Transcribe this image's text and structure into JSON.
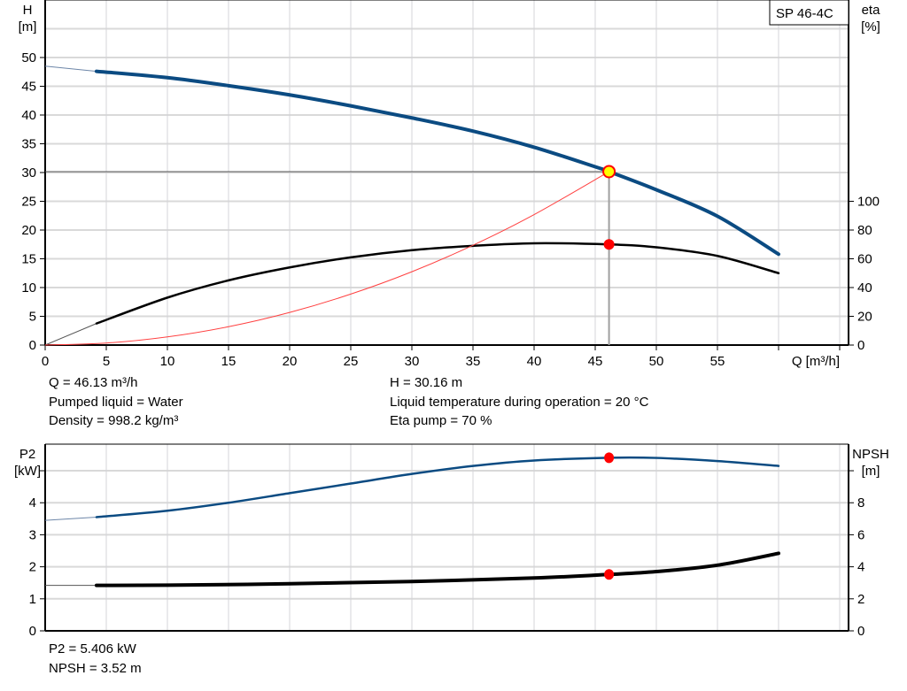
{
  "pump_label": "SP 46-4C",
  "chart_data": [
    {
      "type": "line",
      "title": "",
      "xlabel": "Q [m³/h]",
      "ylabel_left": [
        "H",
        "[m]"
      ],
      "ylabel_right": [
        "eta",
        "[%]"
      ],
      "xlim": [
        0,
        65
      ],
      "ylim_left": [
        0,
        60
      ],
      "ylim_right": [
        0,
        240
      ],
      "xticks": [
        0,
        5,
        10,
        15,
        20,
        25,
        30,
        35,
        40,
        45,
        50,
        55
      ],
      "yticks_left": [
        0,
        5,
        10,
        15,
        20,
        25,
        30,
        35,
        40,
        45,
        50
      ],
      "yticks_right": [
        0,
        20,
        40,
        60,
        80,
        100
      ],
      "grid": true,
      "series": [
        {
          "key": "H",
          "axis": "left",
          "color": "#0b4b82",
          "x": [
            0,
            4.2,
            10,
            15,
            20,
            25,
            30,
            35,
            40,
            45,
            46.13,
            50,
            55,
            60
          ],
          "y": [
            48.5,
            47.6,
            46.5,
            45.1,
            43.5,
            41.6,
            39.5,
            37.2,
            34.4,
            31.0,
            30.16,
            27.0,
            22.4,
            15.8
          ]
        },
        {
          "key": "eta",
          "axis": "right",
          "color": "#000000",
          "x": [
            0,
            4.2,
            10,
            15,
            20,
            25,
            30,
            35,
            40,
            46.13,
            50,
            55,
            60
          ],
          "y": [
            0,
            15,
            33,
            45,
            54,
            61,
            66,
            69,
            70.8,
            70,
            68,
            62,
            50
          ]
        },
        {
          "key": "system",
          "axis": "left",
          "color": "#ff4040",
          "x": [
            0,
            5,
            10,
            15,
            20,
            25,
            30,
            35,
            40,
            46.13
          ],
          "y": [
            0,
            0.35,
            1.42,
            3.19,
            5.67,
            8.86,
            12.75,
            17.36,
            22.68,
            30.16
          ]
        }
      ],
      "operating_point": {
        "Q": 46.13,
        "H": 30.16,
        "eta": 70
      }
    },
    {
      "type": "line",
      "title": "",
      "xlabel": "",
      "ylabel_left": [
        "P2",
        "[kW]"
      ],
      "ylabel_right": [
        "NPSH",
        "[m]"
      ],
      "xlim": [
        0,
        65
      ],
      "ylim_left": [
        0,
        5.3
      ],
      "ylim_right": [
        0,
        10.6
      ],
      "xticks": [
        0,
        5,
        10,
        15,
        20,
        25,
        30,
        35,
        40,
        45,
        50,
        55
      ],
      "yticks_left": [
        0,
        1,
        2,
        3,
        4
      ],
      "yticks_right": [
        0,
        2,
        4,
        6,
        8
      ],
      "grid": true,
      "series": [
        {
          "key": "P2",
          "axis": "left",
          "color": "#0b4b82",
          "x": [
            0,
            4.2,
            10,
            15,
            20,
            25,
            30,
            35,
            40,
            46.13,
            50,
            55,
            60
          ],
          "y": [
            3.45,
            3.55,
            3.75,
            4.0,
            4.3,
            4.6,
            4.9,
            5.15,
            5.32,
            5.406,
            5.4,
            5.3,
            5.15
          ]
        },
        {
          "key": "NPSH",
          "axis": "right",
          "color": "#000000",
          "x": [
            0,
            4.2,
            10,
            20,
            30,
            40,
            46.13,
            50,
            55,
            60
          ],
          "y": [
            2.84,
            2.84,
            2.85,
            2.94,
            3.08,
            3.3,
            3.52,
            3.7,
            4.1,
            4.84
          ]
        }
      ],
      "operating_point": {
        "Q": 46.13,
        "P2": 5.406,
        "NPSH": 3.52
      }
    }
  ],
  "info_top": {
    "q": "Q = 46.13 m³/h",
    "liquid": "Pumped liquid = Water",
    "density": "Density = 998.2 kg/m³",
    "h": "H = 30.16 m",
    "temperature": "Liquid temperature during operation = 20 °C",
    "eta": "Eta pump = 70 %"
  },
  "info_bottom": {
    "p2": "P2 = 5.406 kW",
    "npsh": "NPSH = 3.52 m"
  }
}
